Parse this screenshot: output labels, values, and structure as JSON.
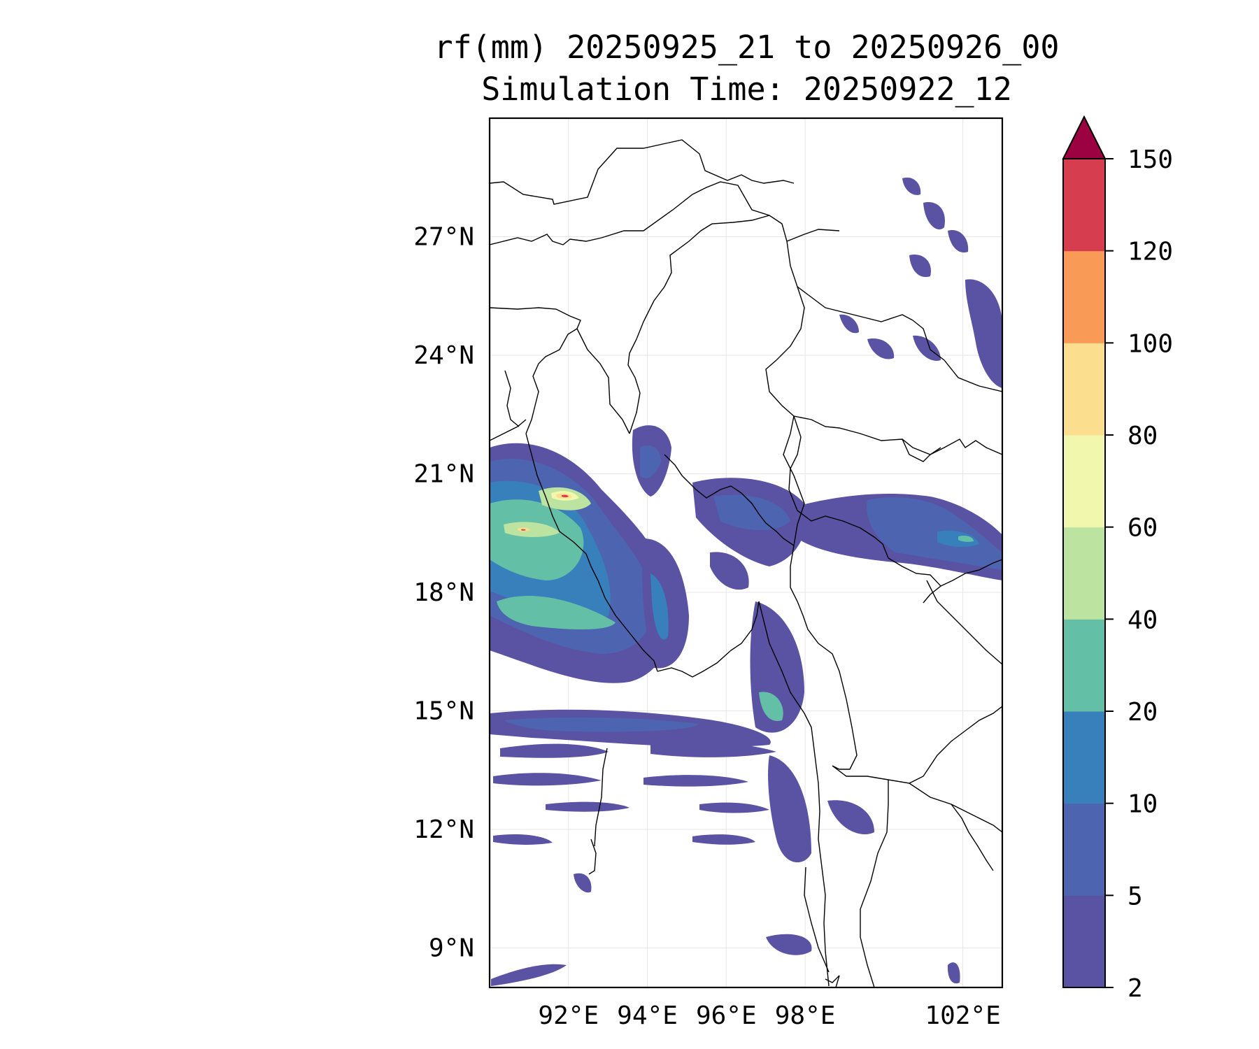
{
  "title": {
    "line1": "rf(mm) 20250925_21 to 20250926_00",
    "line2": "Simulation Time: 20250922_12"
  },
  "map": {
    "lon_range": [
      90.0,
      103.0
    ],
    "lat_range": [
      8.0,
      30.0
    ],
    "lat_ticks": [
      {
        "value": 27,
        "label": "27°N"
      },
      {
        "value": 24,
        "label": "24°N"
      },
      {
        "value": 21,
        "label": "21°N"
      },
      {
        "value": 18,
        "label": "18°N"
      },
      {
        "value": 15,
        "label": "15°N"
      },
      {
        "value": 12,
        "label": "12°N"
      },
      {
        "value": 9,
        "label": "9°N"
      }
    ],
    "lon_ticks": [
      {
        "value": 92,
        "label": "92°E"
      },
      {
        "value": 94,
        "label": "94°E"
      },
      {
        "value": 96,
        "label": "96°E"
      },
      {
        "value": 98,
        "label": "98°E"
      },
      {
        "value": 102,
        "label": "102°E"
      }
    ],
    "grid": true
  },
  "colorbar": {
    "levels": [
      2,
      5,
      10,
      20,
      40,
      60,
      80,
      100,
      120,
      150
    ],
    "labels": [
      "2",
      "5",
      "10",
      "20",
      "40",
      "60",
      "80",
      "100",
      "120",
      "150"
    ],
    "colors": [
      "#5a52a3",
      "#4d65b0",
      "#3880bb",
      "#64bfa7",
      "#bce3a0",
      "#f1f8ae",
      "#fcdf8e",
      "#f99a57",
      "#d63d4e"
    ],
    "extend_color": "#9c0142",
    "extend": "max"
  },
  "colors": {
    "c1": "#5a52a3",
    "c2": "#4d65b0",
    "c3": "#3880bb",
    "c4": "#64bfa7",
    "c5": "#bce3a0",
    "c6": "#f1f8ae",
    "c7": "#fcdf8e",
    "c9": "#d63d4e"
  }
}
